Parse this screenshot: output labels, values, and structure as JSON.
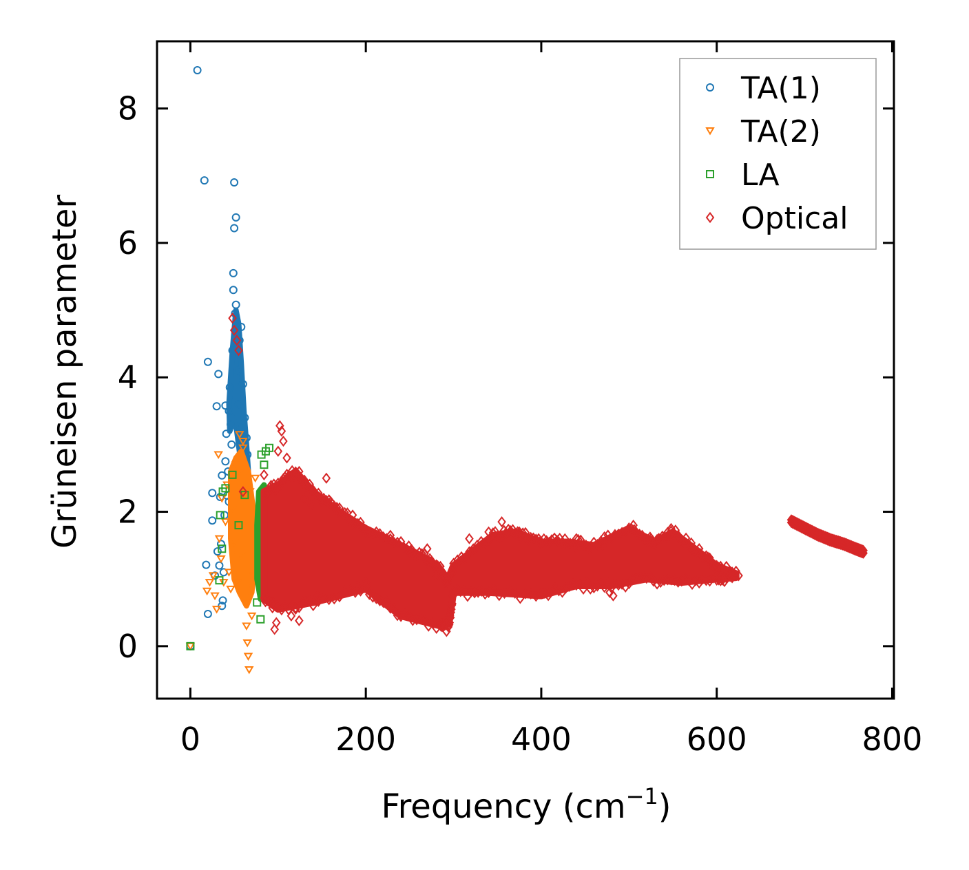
{
  "chart_data": {
    "type": "scatter",
    "title": "",
    "xlabel": "Frequency (cm",
    "xlabel_sup": "−1",
    "xlabel_close": ")",
    "ylabel": "Grüneisen parameter",
    "xlim": [
      -38,
      802
    ],
    "ylim": [
      -0.78,
      9.0
    ],
    "grid": false,
    "legend_position": "top-right",
    "x_ticks": [
      0,
      200,
      400,
      600,
      800
    ],
    "x_tick_labels": [
      "0",
      "200",
      "400",
      "600",
      "800"
    ],
    "y_ticks": [
      0,
      2,
      4,
      6,
      8
    ],
    "y_tick_labels": [
      "0",
      "2",
      "4",
      "6",
      "8"
    ],
    "series": [
      {
        "name": "TA(1)",
        "marker": "circle",
        "color": "#1f77b4",
        "points": [
          [
            0,
            0
          ],
          [
            8,
            8.57
          ],
          [
            16,
            6.93
          ],
          [
            20,
            4.23
          ],
          [
            20,
            0.48
          ],
          [
            18,
            1.21
          ],
          [
            25,
            2.28
          ],
          [
            25,
            1.87
          ],
          [
            28,
            1.05
          ],
          [
            30,
            3.57
          ],
          [
            31,
            1.41
          ],
          [
            32,
            4.05
          ],
          [
            33,
            1.2
          ],
          [
            34,
            2.22
          ],
          [
            35,
            1.52
          ],
          [
            36,
            2.54
          ],
          [
            37,
            0.68
          ],
          [
            38,
            1.1
          ],
          [
            40,
            2.75
          ],
          [
            40,
            3.58
          ],
          [
            41,
            3.16
          ],
          [
            42,
            2.24
          ],
          [
            43,
            2.6
          ],
          [
            44,
            3.5
          ],
          [
            45,
            3.85
          ],
          [
            46,
            3.3
          ],
          [
            48,
            4.4
          ],
          [
            49,
            5.55
          ],
          [
            49,
            5.3
          ],
          [
            50,
            6.22
          ],
          [
            50,
            6.9
          ],
          [
            51,
            4.95
          ],
          [
            52,
            5.08
          ],
          [
            52,
            6.38
          ],
          [
            53,
            4.72
          ],
          [
            54,
            4.1
          ],
          [
            55,
            3.6
          ],
          [
            56,
            4.55
          ],
          [
            57,
            3.25
          ],
          [
            58,
            4.75
          ],
          [
            59,
            2.95
          ],
          [
            60,
            3.9
          ],
          [
            61,
            2.7
          ],
          [
            62,
            3.4
          ],
          [
            63,
            2.6
          ],
          [
            64,
            3.1
          ],
          [
            65,
            2.85
          ],
          [
            58,
            2.4
          ],
          [
            54,
            2.75
          ],
          [
            47,
            3.0
          ],
          [
            44,
            2.15
          ],
          [
            39,
            1.95
          ],
          [
            36,
            0.6
          ]
        ],
        "core_band": [
          [
            44,
            3.6
          ],
          [
            48,
            4.4
          ],
          [
            52,
            5.0
          ],
          [
            55,
            4.8
          ],
          [
            58,
            4.2
          ],
          [
            61,
            3.5
          ],
          [
            64,
            3.0
          ],
          [
            66,
            2.6
          ],
          [
            62,
            2.4
          ],
          [
            57,
            2.8
          ],
          [
            53,
            3.2
          ],
          [
            49,
            3.4
          ],
          [
            45,
            3.2
          ]
        ]
      },
      {
        "name": "TA(2)",
        "marker": "triangle-down",
        "color": "#ff7f0e",
        "points": [
          [
            0,
            0
          ],
          [
            19,
            0.82
          ],
          [
            22,
            0.95
          ],
          [
            26,
            1.05
          ],
          [
            28,
            0.75
          ],
          [
            30,
            0.55
          ],
          [
            32,
            2.85
          ],
          [
            33,
            1.6
          ],
          [
            35,
            1.3
          ],
          [
            36,
            2.2
          ],
          [
            38,
            0.95
          ],
          [
            40,
            1.85
          ],
          [
            42,
            2.4
          ],
          [
            44,
            1.1
          ],
          [
            46,
            0.85
          ],
          [
            48,
            2.05
          ],
          [
            50,
            1.55
          ],
          [
            52,
            2.7
          ],
          [
            54,
            0.95
          ],
          [
            56,
            3.15
          ],
          [
            58,
            1.35
          ],
          [
            60,
            2.95
          ],
          [
            62,
            0.65
          ],
          [
            64,
            0.3
          ],
          [
            65,
            0.05
          ],
          [
            66,
            -0.15
          ],
          [
            67,
            -0.35
          ],
          [
            68,
            2.3
          ],
          [
            70,
            0.45
          ],
          [
            72,
            1.05
          ],
          [
            74,
            2.5
          ],
          [
            60,
            3.05
          ],
          [
            57,
            2.6
          ]
        ],
        "core_band": [
          [
            46,
            2.6
          ],
          [
            52,
            2.8
          ],
          [
            58,
            2.9
          ],
          [
            66,
            2.6
          ],
          [
            72,
            2.0
          ],
          [
            74,
            1.4
          ],
          [
            70,
            0.8
          ],
          [
            64,
            0.6
          ],
          [
            56,
            0.8
          ],
          [
            50,
            1.0
          ],
          [
            46,
            1.6
          ]
        ]
      },
      {
        "name": "LA",
        "marker": "square",
        "color": "#2ca02c",
        "points": [
          [
            0,
            0
          ],
          [
            33,
            0.98
          ],
          [
            34,
            1.95
          ],
          [
            36,
            1.45
          ],
          [
            37,
            2.3
          ],
          [
            40,
            2.35
          ],
          [
            48,
            2.55
          ],
          [
            55,
            1.8
          ],
          [
            62,
            2.25
          ],
          [
            76,
            0.65
          ],
          [
            80,
            0.4
          ],
          [
            81,
            2.85
          ],
          [
            82,
            1.55
          ],
          [
            84,
            2.7
          ],
          [
            86,
            2.9
          ],
          [
            88,
            2.2
          ],
          [
            90,
            2.95
          ],
          [
            92,
            1.2
          ],
          [
            93,
            1.7
          ],
          [
            94,
            0.95
          ],
          [
            95,
            1.4
          ]
        ],
        "core_band": [
          [
            78,
            2.3
          ],
          [
            84,
            2.4
          ],
          [
            90,
            2.1
          ],
          [
            95,
            1.6
          ],
          [
            95,
            0.9
          ],
          [
            88,
            0.7
          ],
          [
            80,
            0.7
          ],
          [
            76,
            1.0
          ],
          [
            76,
            1.8
          ]
        ]
      },
      {
        "name": "Optical",
        "marker": "diamond",
        "color": "#d62728",
        "points": [
          [
            48,
            4.88
          ],
          [
            50,
            4.7
          ],
          [
            53,
            4.55
          ],
          [
            55,
            4.4
          ],
          [
            60,
            2.3
          ],
          [
            84,
            2.55
          ],
          [
            96,
            0.25
          ],
          [
            98,
            0.35
          ],
          [
            100,
            2.9
          ],
          [
            102,
            3.28
          ],
          [
            104,
            3.2
          ],
          [
            106,
            3.05
          ],
          [
            110,
            2.8
          ],
          [
            115,
            0.45
          ],
          [
            120,
            0.55
          ],
          [
            124,
            0.38
          ],
          [
            130,
            2.2
          ],
          [
            138,
            2.1
          ],
          [
            145,
            0.75
          ],
          [
            155,
            2.5
          ],
          [
            160,
            2.15
          ],
          [
            168,
            2.0
          ],
          [
            185,
            1.95
          ],
          [
            190,
            0.9
          ],
          [
            200,
            0.95
          ],
          [
            228,
            1.65
          ],
          [
            250,
            1.4
          ],
          [
            270,
            1.45
          ],
          [
            280,
            1.05
          ],
          [
            292,
            0.22
          ],
          [
            318,
            1.6
          ],
          [
            340,
            1.7
          ],
          [
            355,
            1.85
          ],
          [
            375,
            1.7
          ],
          [
            398,
            1.55
          ],
          [
            420,
            1.55
          ],
          [
            440,
            1.6
          ],
          [
            470,
            1.5
          ],
          [
            478,
            0.8
          ],
          [
            482,
            0.75
          ],
          [
            505,
            1.8
          ],
          [
            525,
            1.6
          ],
          [
            548,
            1.75
          ],
          [
            572,
            1.45
          ],
          [
            600,
            1.2
          ],
          [
            615,
            1.05
          ],
          [
            625,
            1.05
          ]
        ],
        "band_lower": [
          [
            84,
            0.7
          ],
          [
            100,
            0.55
          ],
          [
            140,
            0.65
          ],
          [
            200,
            0.85
          ],
          [
            240,
            0.45
          ],
          [
            285,
            0.3
          ],
          [
            295,
            0.35
          ],
          [
            300,
            0.8
          ],
          [
            340,
            0.8
          ],
          [
            400,
            0.75
          ],
          [
            440,
            0.9
          ],
          [
            480,
            0.9
          ],
          [
            520,
            1.0
          ],
          [
            560,
            0.95
          ],
          [
            600,
            1.0
          ],
          [
            622,
            1.02
          ]
        ],
        "band_upper": [
          [
            622,
            1.08
          ],
          [
            600,
            1.2
          ],
          [
            580,
            1.4
          ],
          [
            550,
            1.7
          ],
          [
            530,
            1.55
          ],
          [
            500,
            1.75
          ],
          [
            460,
            1.5
          ],
          [
            430,
            1.55
          ],
          [
            400,
            1.55
          ],
          [
            370,
            1.7
          ],
          [
            345,
            1.65
          ],
          [
            300,
            1.2
          ],
          [
            292,
            0.95
          ],
          [
            285,
            1.15
          ],
          [
            270,
            1.3
          ],
          [
            240,
            1.5
          ],
          [
            200,
            1.75
          ],
          [
            170,
            2.0
          ],
          [
            140,
            2.3
          ],
          [
            120,
            2.6
          ],
          [
            100,
            2.4
          ],
          [
            84,
            2.3
          ]
        ],
        "upper_branch": [
          [
            685,
            1.88
          ],
          [
            700,
            1.78
          ],
          [
            715,
            1.68
          ],
          [
            730,
            1.6
          ],
          [
            745,
            1.54
          ],
          [
            758,
            1.47
          ],
          [
            768,
            1.42
          ]
        ]
      }
    ]
  }
}
